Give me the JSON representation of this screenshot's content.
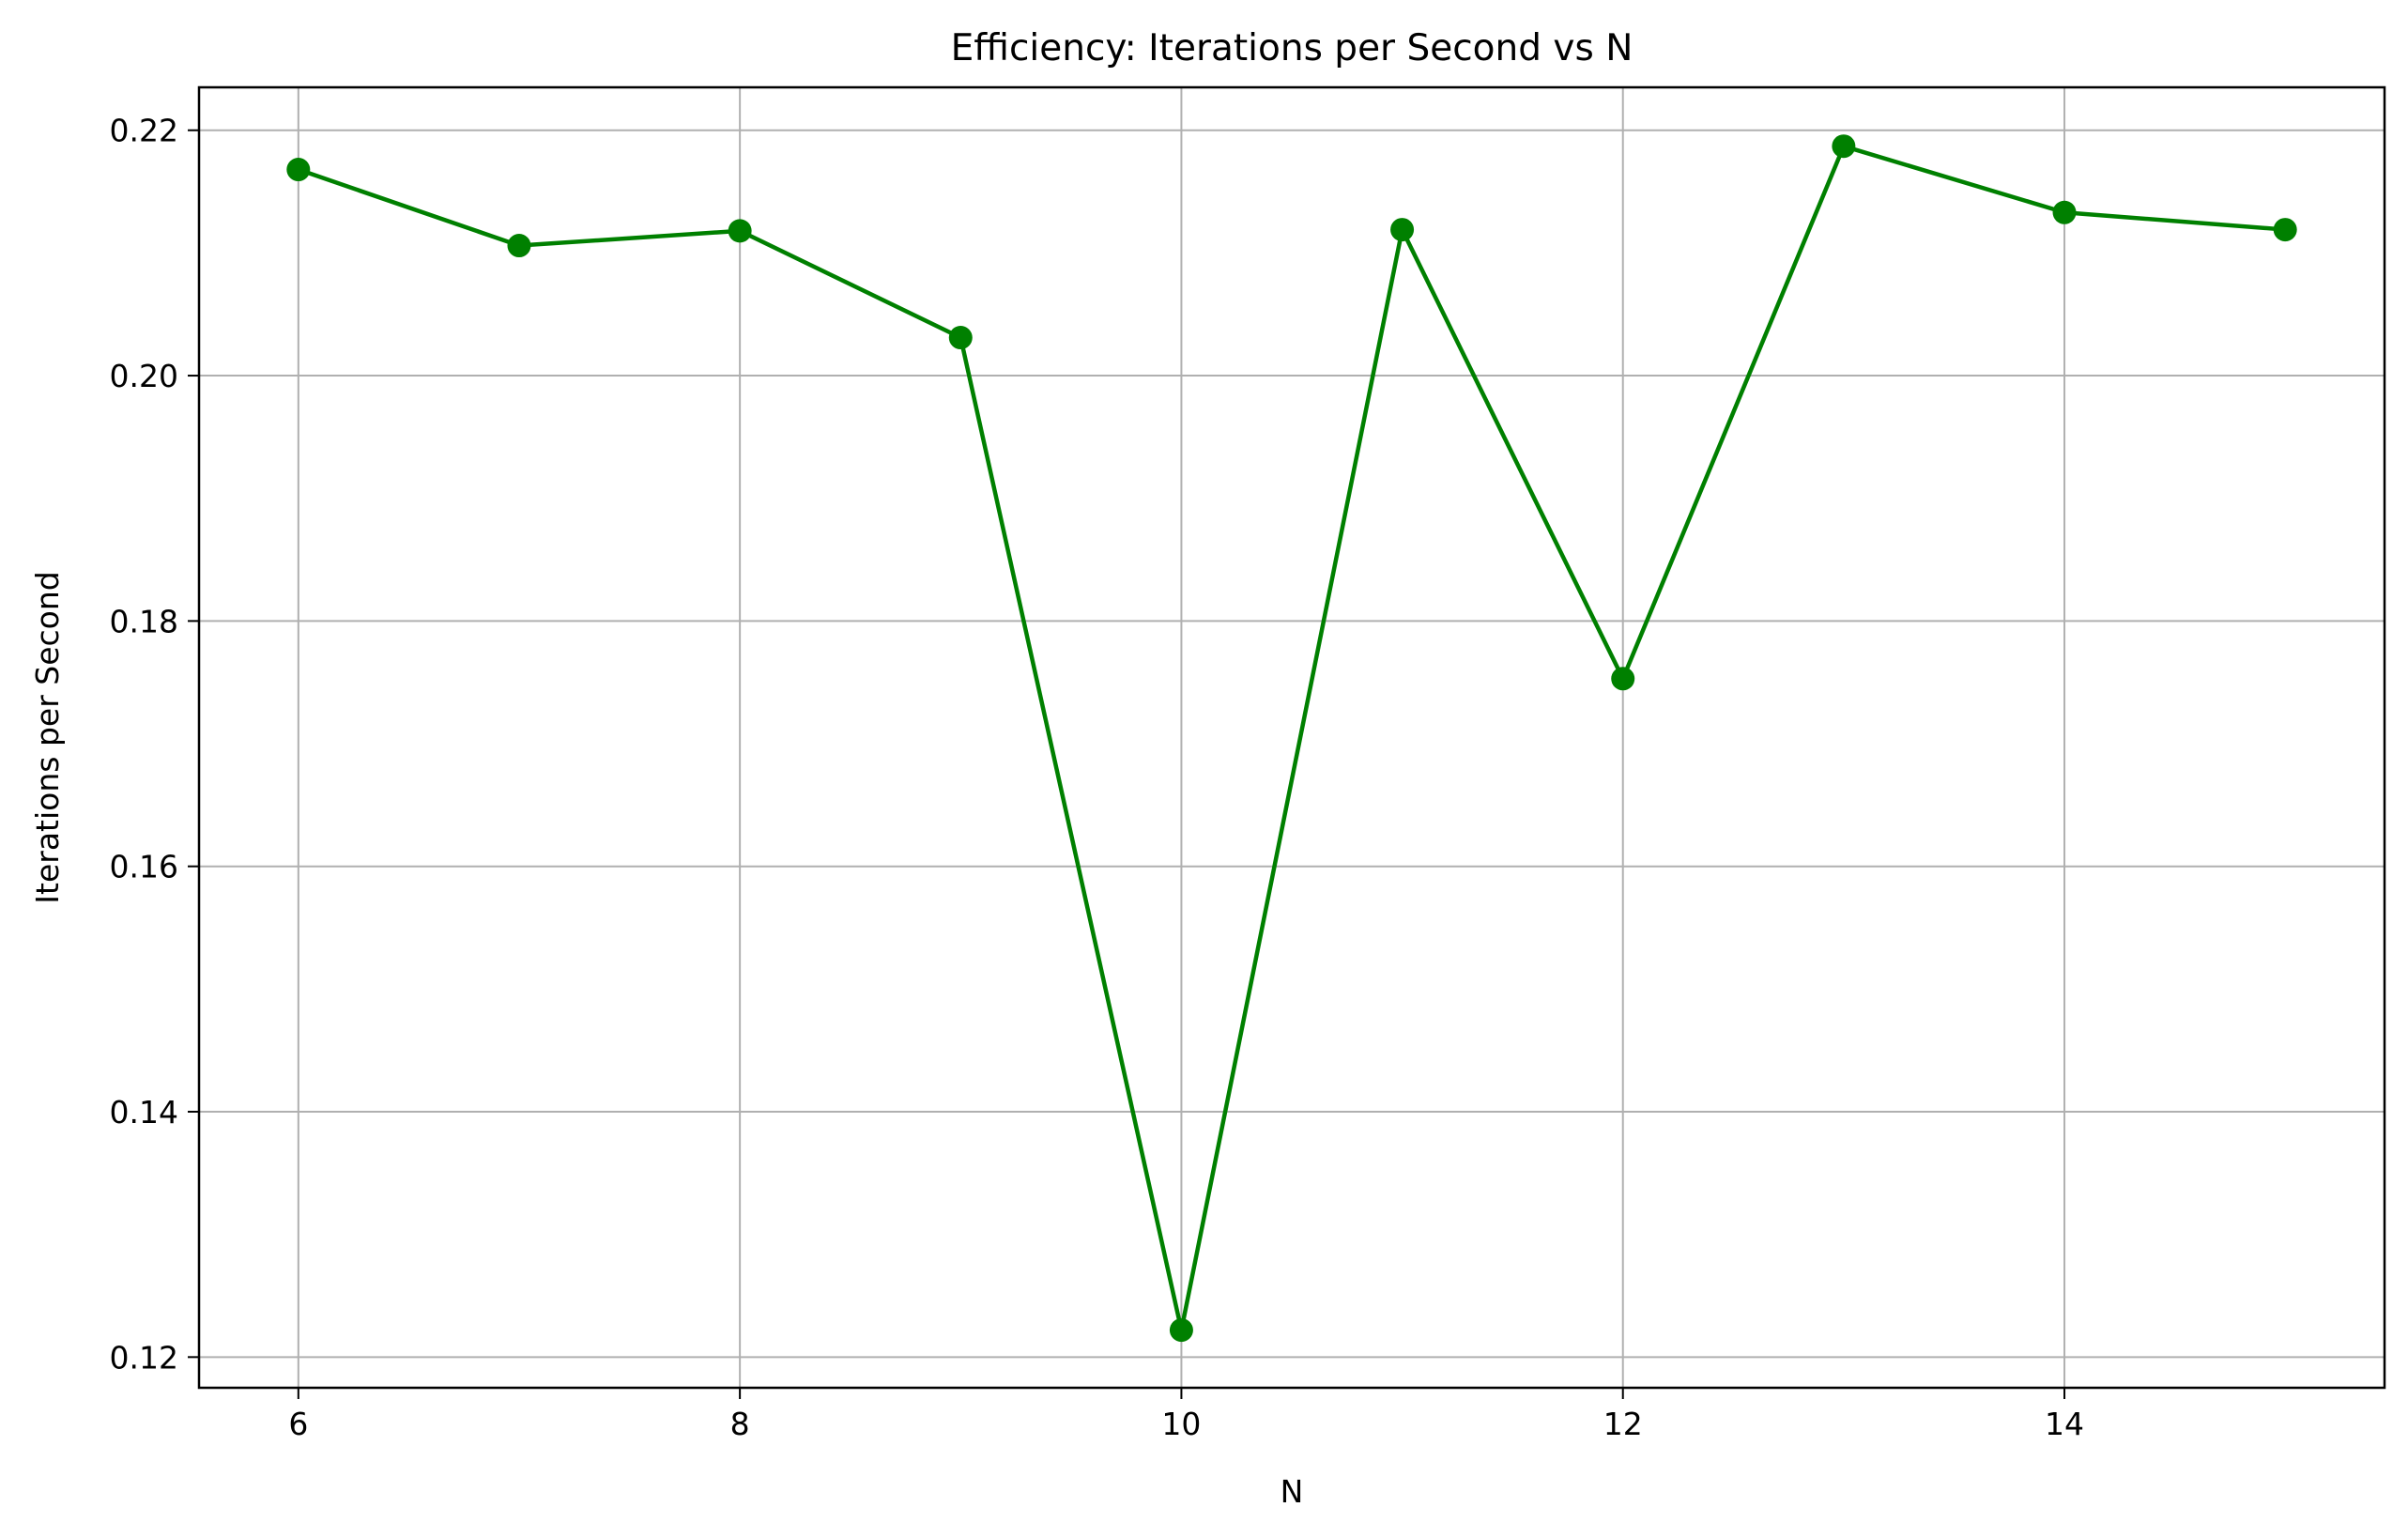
{
  "chart_data": {
    "type": "line",
    "title": "Efficiency: Iterations per Second vs N",
    "xlabel": "N",
    "ylabel": "Iterations per Second",
    "x": [
      6,
      7,
      8,
      9,
      10,
      11,
      12,
      13,
      14,
      15
    ],
    "series": [
      {
        "values": [
          0.2168,
          0.2106,
          0.2118,
          0.2031,
          0.1222,
          0.2119,
          0.1753,
          0.2187,
          0.2133,
          0.2119
        ],
        "color": "#008000",
        "marker": "circle"
      }
    ],
    "xlim": [
      5.55,
      15.45
    ],
    "ylim": [
      0.1175,
      0.2235
    ],
    "xticks": [
      6,
      8,
      10,
      12,
      14
    ],
    "xtick_labels": [
      "6",
      "8",
      "10",
      "12",
      "14"
    ],
    "yticks": [
      0.12,
      0.14,
      0.16,
      0.18,
      0.2,
      0.22
    ],
    "ytick_labels": [
      "0.12",
      "0.14",
      "0.16",
      "0.18",
      "0.20",
      "0.22"
    ],
    "grid": true,
    "grid_color": "#b0b0b0",
    "axis_color": "#000000",
    "legend": "none"
  }
}
